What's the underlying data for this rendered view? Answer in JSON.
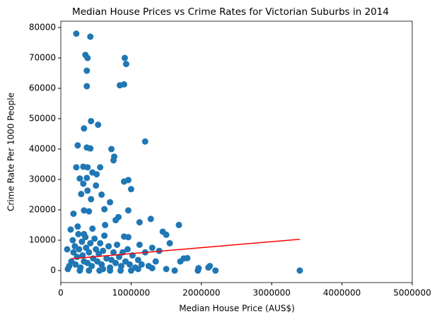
{
  "chart_data": {
    "type": "scatter",
    "title": "Median House Prices vs Crime Rates for Victorian Suburbs in 2014",
    "x_label": "Median House Price (AUS$)",
    "y_label": "Crime Rate Per 1000 People",
    "xlim": [
      0,
      5000000
    ],
    "ylim": [
      -3950,
      82100
    ],
    "xticks": [
      0,
      1000000,
      2000000,
      3000000,
      4000000,
      5000000
    ],
    "yticks": [
      0,
      10000,
      20000,
      30000,
      40000,
      50000,
      60000,
      70000,
      80000
    ],
    "grid": false,
    "series": [
      {
        "type": "scatter",
        "color": "#1f77b4",
        "x": [
          220000,
          420000,
          350000,
          380000,
          370000,
          370000,
          910000,
          930000,
          840000,
          900000,
          430000,
          530000,
          330000,
          1200000,
          240000,
          370000,
          420000,
          720000,
          760000,
          750000,
          220000,
          320000,
          380000,
          560000,
          450000,
          510000,
          270000,
          370000,
          960000,
          900000,
          320000,
          500000,
          1000000,
          380000,
          290000,
          580000,
          430000,
          700000,
          960000,
          620000,
          330000,
          400000,
          180000,
          820000,
          1280000,
          780000,
          1120000,
          1680000,
          630000,
          450000,
          1450000,
          1500000,
          900000,
          960000,
          1550000,
          1120000,
          1300000,
          1400000,
          1200000,
          1750000,
          1800000,
          1700000,
          2100000,
          2120000,
          1950000,
          1960000,
          2200000,
          3400000,
          1500000,
          1620000,
          1300000,
          100000,
          120000,
          150000,
          180000,
          200000,
          210000,
          230000,
          250000,
          260000,
          280000,
          300000,
          310000,
          330000,
          350000,
          360000,
          380000,
          400000,
          420000,
          440000,
          460000,
          480000,
          500000,
          520000,
          540000,
          560000,
          580000,
          600000,
          620000,
          650000,
          680000,
          700000,
          720000,
          750000,
          780000,
          800000,
          830000,
          860000,
          880000,
          920000,
          950000,
          980000,
          1020000,
          1060000,
          1100000,
          1150000,
          1250000,
          1350000,
          90000,
          140000,
          170000,
          240000,
          330000,
          270000,
          400000,
          550000,
          700000,
          850000,
          1000000,
          1100000,
          600000
        ],
        "y": [
          78000,
          77000,
          71000,
          70000,
          65800,
          60700,
          70000,
          68000,
          61000,
          61300,
          49200,
          48000,
          46800,
          42500,
          41200,
          40500,
          40200,
          40000,
          37500,
          36300,
          34000,
          34200,
          34000,
          34000,
          32300,
          31700,
          30300,
          30500,
          29800,
          29300,
          28600,
          28000,
          26800,
          26300,
          25200,
          25000,
          23500,
          22500,
          19800,
          20200,
          19800,
          19500,
          18700,
          17600,
          17000,
          16600,
          15900,
          15000,
          15000,
          13800,
          12800,
          11800,
          11200,
          11000,
          9000,
          8500,
          7500,
          6500,
          6000,
          4000,
          4100,
          3000,
          1000,
          1500,
          0,
          800,
          0,
          0,
          500,
          0,
          800,
          500,
          1500,
          3000,
          6000,
          8000,
          2000,
          4500,
          12000,
          7000,
          1000,
          9500,
          5000,
          3000,
          11000,
          7500,
          2500,
          6000,
          9000,
          1500,
          4000,
          10500,
          7000,
          3000,
          5500,
          9000,
          2000,
          6500,
          11500,
          4000,
          8000,
          1000,
          3500,
          6000,
          2500,
          8500,
          4500,
          1500,
          6000,
          3000,
          7000,
          2000,
          5000,
          1000,
          3500,
          2000,
          1500,
          3000,
          7000,
          13500,
          10000,
          14500,
          12000,
          0,
          0,
          0,
          0,
          0,
          0,
          500,
          500
        ]
      },
      {
        "type": "line",
        "color": "red",
        "x": [
          150000,
          3400000
        ],
        "y": [
          3900,
          10300
        ]
      }
    ]
  }
}
